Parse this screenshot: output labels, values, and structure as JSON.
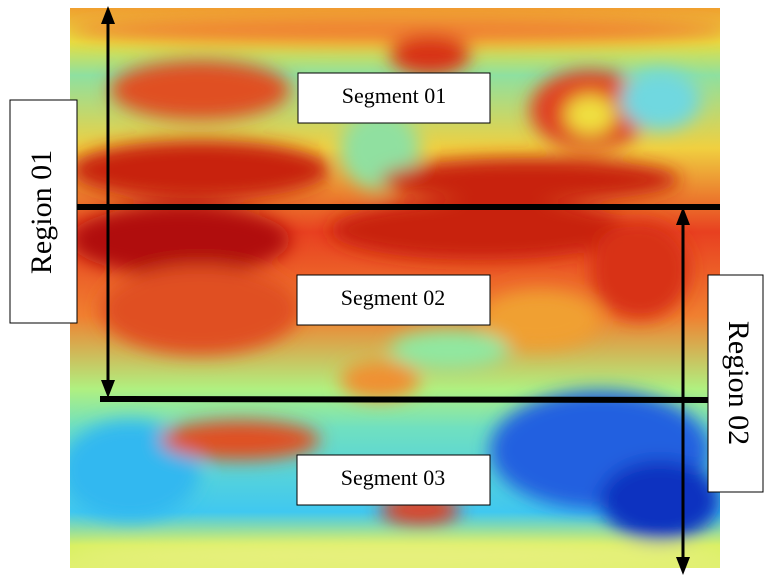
{
  "segments": [
    {
      "label": "Segment 01"
    },
    {
      "label": "Segment 02"
    },
    {
      "label": "Segment 03"
    }
  ],
  "regions": [
    {
      "label": "Region 01"
    },
    {
      "label": "Region 02"
    }
  ]
}
